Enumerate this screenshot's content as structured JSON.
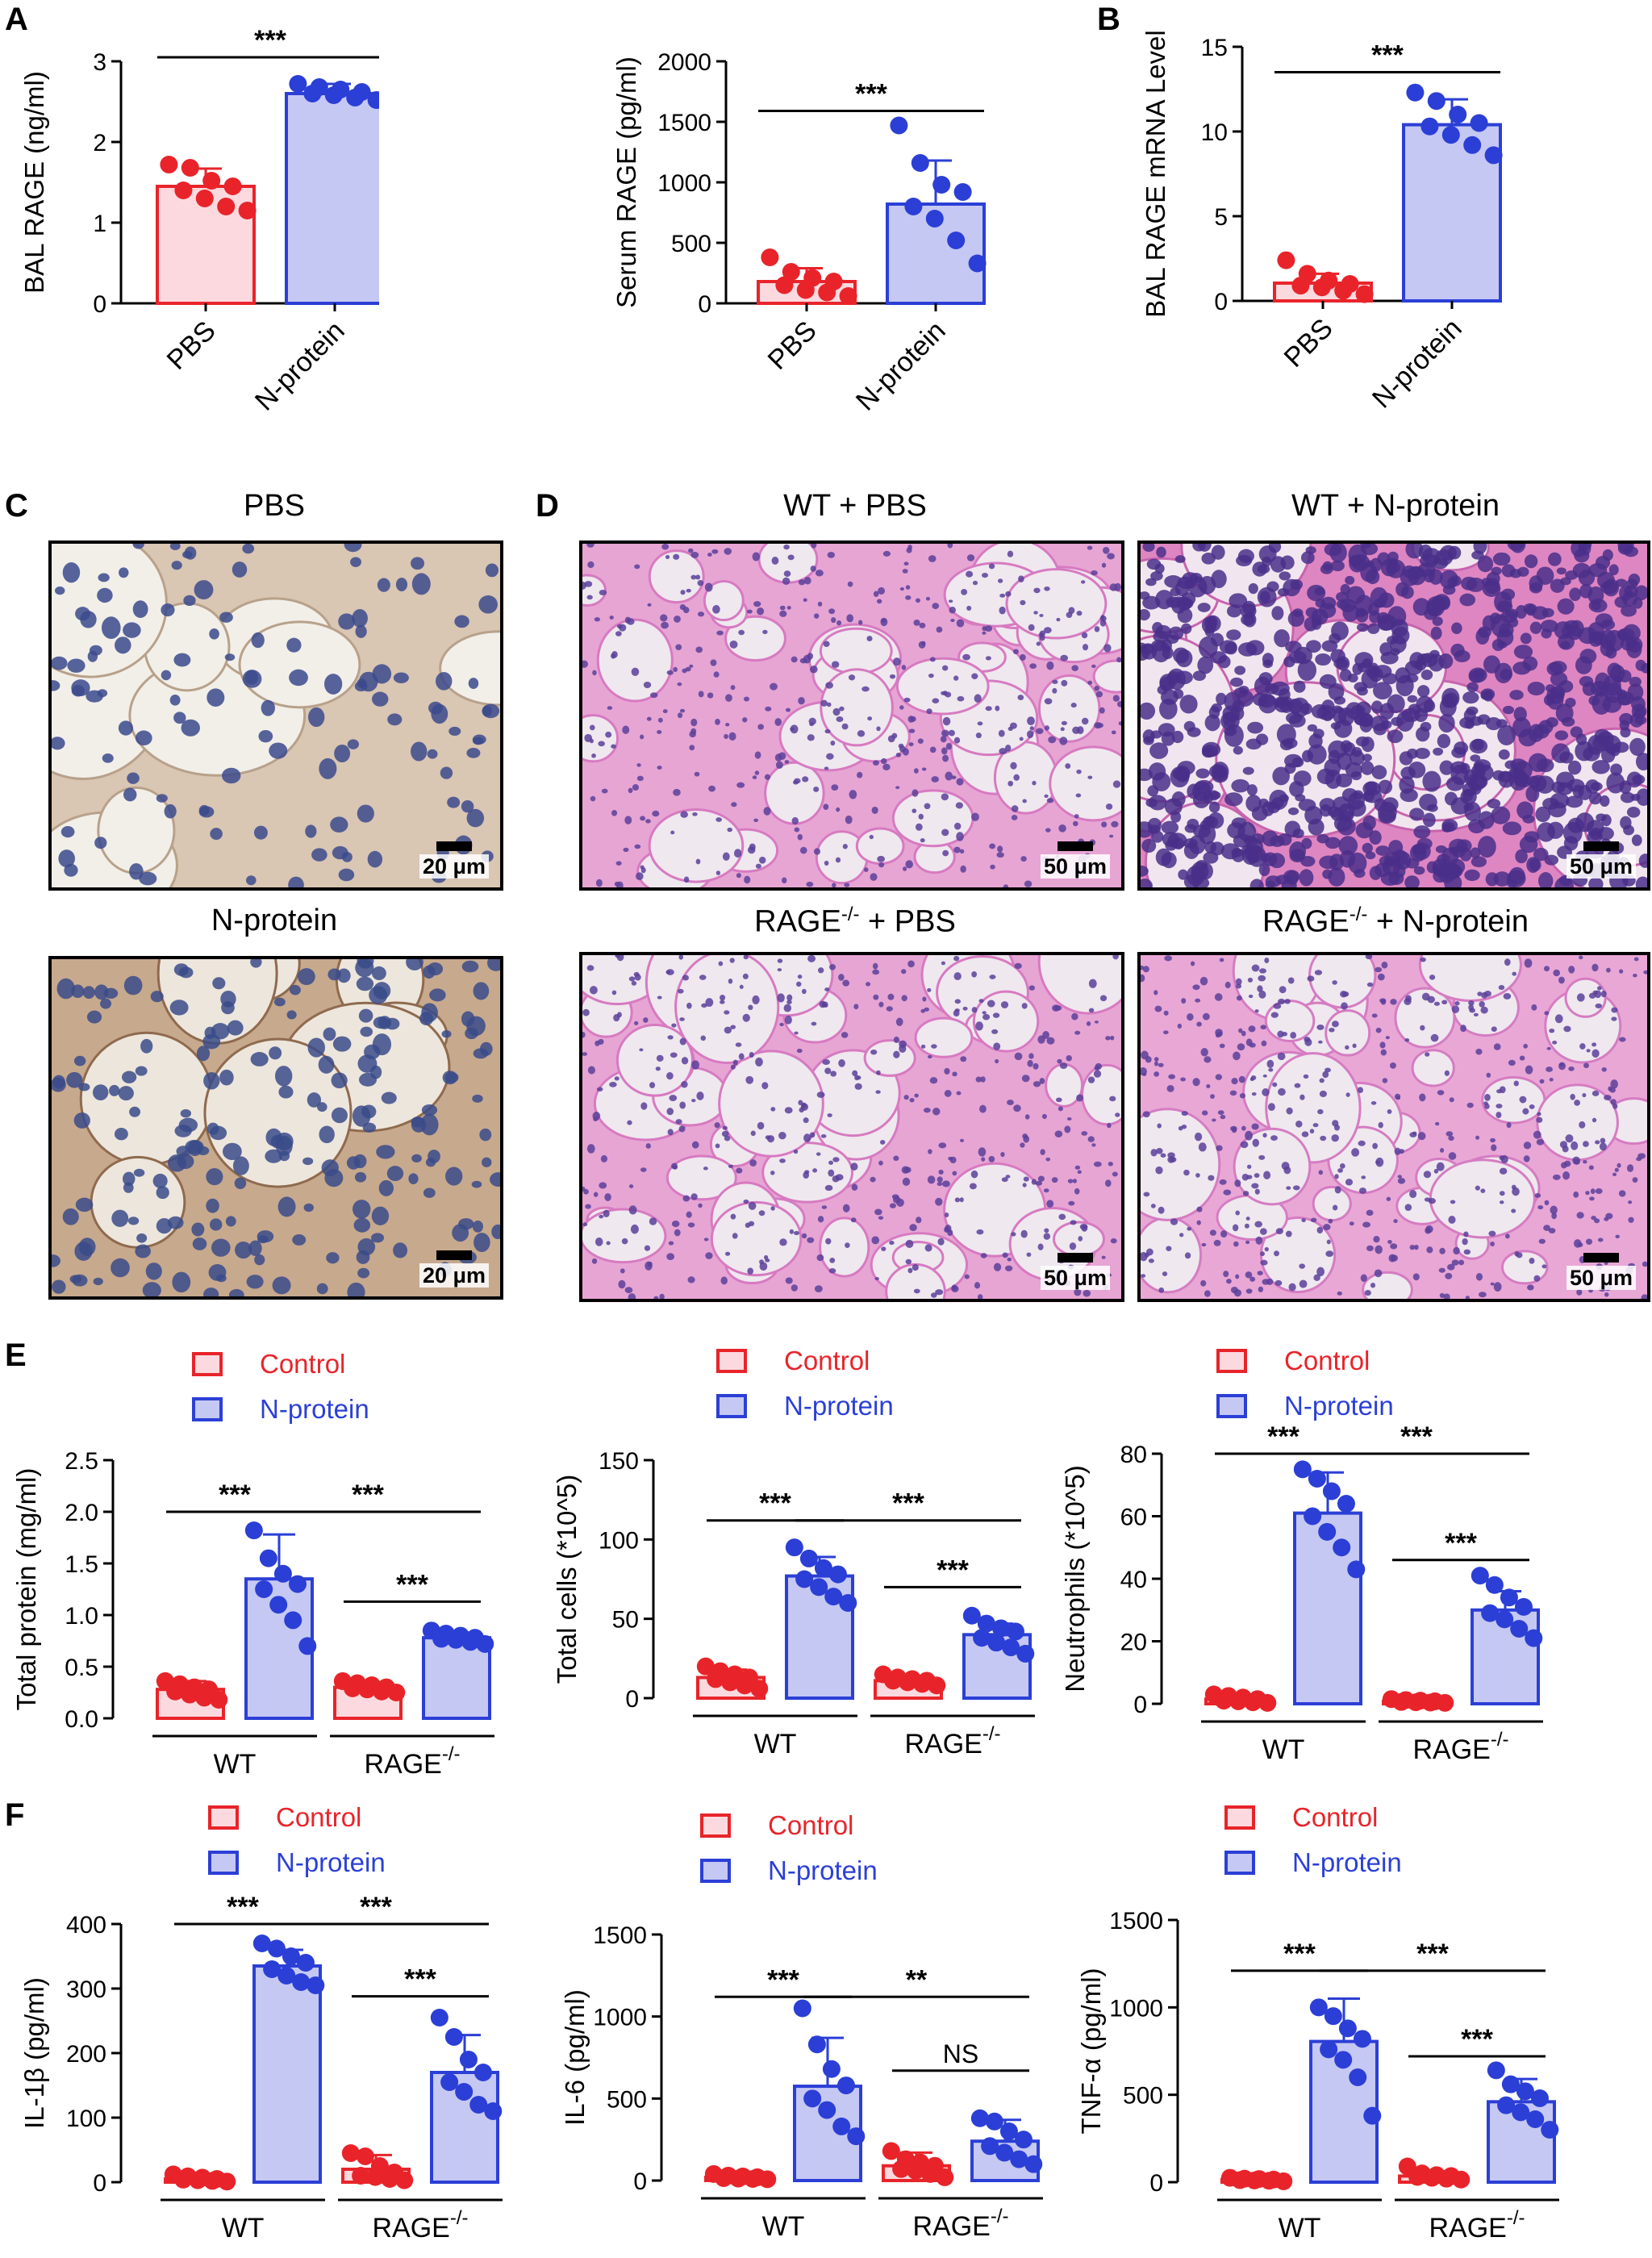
{
  "panel_labels": [
    "A",
    "B",
    "C",
    "D",
    "E",
    "F"
  ],
  "colors": {
    "control": "#e8242a",
    "control_fill": "#fcd9de",
    "nprot": "#2b3fd6",
    "nprot_fill": "#c5c8f3"
  },
  "micrographs": [
    {
      "id": "c-pbs",
      "title": "PBS",
      "scale": "20 μm",
      "stain": "ihc-light"
    },
    {
      "id": "c-nprot",
      "title": "N-protein",
      "scale": "20 μm",
      "stain": "ihc-dark"
    },
    {
      "id": "d-wt-pbs",
      "title": "WT + PBS",
      "scale": "50 μm",
      "stain": "he-normal"
    },
    {
      "id": "d-wt-nprot",
      "title": "WT + N-protein",
      "scale": "50 μm",
      "stain": "he-inflamed"
    },
    {
      "id": "d-rage-pbs",
      "title_main": "RAGE",
      "title_sup": "-/-",
      "title_rest": " + PBS",
      "scale": "50 μm",
      "stain": "he-normal"
    },
    {
      "id": "d-rage-nprot",
      "title_main": "RAGE",
      "title_sup": "-/-",
      "title_rest": " + N-protein",
      "scale": "50 μm",
      "stain": "he-mild"
    }
  ],
  "chart_data": [
    {
      "id": "a1",
      "type": "bar",
      "ylabel": "BAL RAGE (ng/ml)",
      "ylim": [
        0,
        3
      ],
      "yticks": [
        0,
        1,
        2,
        3
      ],
      "categories": [
        "PBS",
        "N-protein"
      ],
      "values": [
        1.45,
        2.6
      ],
      "errors": [
        0.22,
        0.12
      ],
      "colors": [
        "control",
        "nprot"
      ],
      "points": [
        [
          1.72,
          1.68,
          1.52,
          1.45,
          1.4,
          1.3,
          1.2,
          1.15
        ],
        [
          2.72,
          2.68,
          2.65,
          2.62,
          2.6,
          2.58,
          2.55,
          2.52
        ]
      ],
      "sig": [
        {
          "from": 0,
          "to": 1,
          "label": "***",
          "y": 3.05
        }
      ]
    },
    {
      "id": "a2",
      "type": "bar",
      "ylabel": "Serum RAGE (pg/ml)",
      "ylim": [
        0,
        2000
      ],
      "yticks": [
        0,
        500,
        1000,
        1500,
        2000
      ],
      "categories": [
        "PBS",
        "N-protein"
      ],
      "values": [
        180,
        820
      ],
      "errors": [
        110,
        360
      ],
      "colors": [
        "control",
        "nprot"
      ],
      "points": [
        [
          380,
          260,
          210,
          180,
          150,
          110,
          90,
          60
        ],
        [
          1470,
          1160,
          980,
          920,
          800,
          700,
          520,
          330
        ]
      ],
      "sig": [
        {
          "from": 0,
          "to": 1,
          "label": "***",
          "y": 1590
        }
      ]
    },
    {
      "id": "b1",
      "type": "bar",
      "ylabel": "BAL RAGE mRNA Level",
      "ylim": [
        0,
        15
      ],
      "yticks": [
        0,
        5,
        10,
        15
      ],
      "categories": [
        "PBS",
        "N-protein"
      ],
      "values": [
        1.05,
        10.4
      ],
      "errors": [
        0.55,
        1.5
      ],
      "colors": [
        "control",
        "nprot"
      ],
      "points": [
        [
          2.4,
          1.6,
          1.2,
          1.0,
          0.9,
          0.8,
          0.6,
          0.4
        ],
        [
          12.3,
          11.8,
          11.0,
          10.5,
          10.3,
          9.8,
          9.2,
          8.6
        ]
      ],
      "sig": [
        {
          "from": 0,
          "to": 1,
          "label": "***",
          "y": 13.5
        }
      ]
    },
    {
      "id": "e1",
      "type": "bar",
      "ylabel": "Total protein (mg/ml)",
      "ylim": [
        0,
        2.5
      ],
      "yticks": [
        "0.0",
        "0.5",
        "1.0",
        "1.5",
        "2.0",
        "2.5"
      ],
      "categories": [
        "Control",
        "N-protein",
        "Control",
        "N-protein"
      ],
      "groups": [
        "WT",
        "RAGE"
      ],
      "group_sup": [
        "",
        "-/-"
      ],
      "values": [
        0.28,
        1.35,
        0.3,
        0.78
      ],
      "errors": [
        0.08,
        0.43,
        0.05,
        0.05
      ],
      "colors": [
        "control",
        "nprot",
        "control",
        "nprot"
      ],
      "points": [
        [
          0.36,
          0.33,
          0.3,
          0.28,
          0.26,
          0.23,
          0.2,
          0.18
        ],
        [
          1.82,
          1.55,
          1.4,
          1.3,
          1.25,
          1.1,
          0.95,
          0.7
        ],
        [
          0.36,
          0.34,
          0.32,
          0.3,
          0.29,
          0.28,
          0.26,
          0.25
        ],
        [
          0.85,
          0.82,
          0.8,
          0.78,
          0.77,
          0.76,
          0.74,
          0.72
        ]
      ],
      "legend": [
        "Control",
        "N-protein"
      ],
      "sig": [
        {
          "from": 0,
          "to": 1,
          "label": "***",
          "y": 2.0
        },
        {
          "from": 1,
          "to": 3,
          "label": "***",
          "y": 2.0
        },
        {
          "from": 2,
          "to": 3,
          "label": "***",
          "y": 1.13
        }
      ]
    },
    {
      "id": "e2",
      "type": "bar",
      "ylabel": "Total cells (*10^5)",
      "ylim": [
        0,
        150
      ],
      "yticks": [
        0,
        50,
        100,
        150
      ],
      "categories": [
        "Control",
        "N-protein",
        "Control",
        "N-protein"
      ],
      "groups": [
        "WT",
        "RAGE"
      ],
      "group_sup": [
        "",
        "-/-"
      ],
      "values": [
        13,
        77,
        11,
        40
      ],
      "errors": [
        5,
        12,
        3,
        7
      ],
      "colors": [
        "control",
        "nprot",
        "control",
        "nprot"
      ],
      "points": [
        [
          20,
          17,
          15,
          13,
          12,
          10,
          8,
          6
        ],
        [
          95,
          88,
          82,
          78,
          75,
          70,
          64,
          60
        ],
        [
          15,
          13,
          12,
          11,
          11,
          10,
          9,
          8
        ],
        [
          52,
          47,
          44,
          42,
          38,
          35,
          32,
          28
        ]
      ],
      "legend": [
        "Control",
        "N-protein"
      ],
      "sig": [
        {
          "from": 0,
          "to": 1,
          "label": "***",
          "y": 112
        },
        {
          "from": 1,
          "to": 3,
          "label": "***",
          "y": 112
        },
        {
          "from": 2,
          "to": 3,
          "label": "***",
          "y": 70
        }
      ]
    },
    {
      "id": "e3",
      "type": "bar",
      "ylabel": "Neutrophils (*10^5)",
      "ylim": [
        0,
        80
      ],
      "yticks": [
        0,
        20,
        40,
        60,
        80
      ],
      "categories": [
        "Control",
        "N-protein",
        "Control",
        "N-protein"
      ],
      "groups": [
        "WT",
        "RAGE"
      ],
      "group_sup": [
        "",
        "-/-"
      ],
      "values": [
        1.5,
        61,
        0.8,
        30
      ],
      "errors": [
        1,
        13,
        0.5,
        6
      ],
      "colors": [
        "control",
        "nprot",
        "control",
        "nprot"
      ],
      "points": [
        [
          3,
          2.5,
          2,
          1.5,
          1,
          0.8,
          0.5,
          0.3
        ],
        [
          75,
          72,
          68,
          64,
          60,
          55,
          50,
          43
        ],
        [
          1.5,
          1.2,
          1,
          0.8,
          0.6,
          0.5,
          0.4,
          0.3
        ],
        [
          41,
          38,
          34,
          31,
          29,
          27,
          24,
          21
        ]
      ],
      "legend": [
        "Control",
        "N-protein"
      ],
      "sig": [
        {
          "from": 0,
          "to": 1,
          "label": "***",
          "y": 80
        },
        {
          "from": 1,
          "to": 3,
          "label": "***",
          "y": 80
        },
        {
          "from": 2,
          "to": 3,
          "label": "***",
          "y": 46
        }
      ]
    },
    {
      "id": "f1",
      "type": "bar",
      "ylabel": "IL-1β (pg/ml)",
      "ylim": [
        0,
        400
      ],
      "yticks": [
        0,
        100,
        200,
        300,
        400
      ],
      "categories": [
        "Control",
        "N-protein",
        "Control",
        "N-protein"
      ],
      "groups": [
        "WT",
        "RAGE"
      ],
      "group_sup": [
        "",
        "-/-"
      ],
      "values": [
        5,
        335,
        20,
        170
      ],
      "errors": [
        4,
        25,
        22,
        58
      ],
      "colors": [
        "control",
        "nprot",
        "control",
        "nprot"
      ],
      "points": [
        [
          12,
          9,
          7,
          5,
          4,
          3,
          2,
          1
        ],
        [
          370,
          362,
          350,
          340,
          330,
          320,
          310,
          305
        ],
        [
          45,
          40,
          25,
          15,
          10,
          8,
          5,
          3
        ],
        [
          255,
          225,
          190,
          170,
          155,
          140,
          120,
          110
        ]
      ],
      "legend": [
        "Control",
        "N-protein"
      ],
      "sig": [
        {
          "from": 0,
          "to": 1,
          "label": "***",
          "y": 400
        },
        {
          "from": 1,
          "to": 3,
          "label": "***",
          "y": 400
        },
        {
          "from": 2,
          "to": 3,
          "label": "***",
          "y": 288
        }
      ]
    },
    {
      "id": "f2",
      "type": "bar",
      "ylabel": "IL-6 (pg/ml)",
      "ylim": [
        0,
        1500
      ],
      "yticks": [
        0,
        500,
        1000,
        1500
      ],
      "categories": [
        "Control",
        "N-protein",
        "Control",
        "N-protein"
      ],
      "groups": [
        "WT",
        "RAGE"
      ],
      "group_sup": [
        "",
        "-/-"
      ],
      "values": [
        20,
        575,
        90,
        240
      ],
      "errors": [
        12,
        295,
        80,
        130
      ],
      "colors": [
        "control",
        "nprot",
        "control",
        "nprot"
      ],
      "points": [
        [
          40,
          30,
          25,
          20,
          15,
          12,
          10,
          8
        ],
        [
          1050,
          830,
          680,
          580,
          500,
          430,
          330,
          270
        ],
        [
          180,
          130,
          110,
          90,
          70,
          60,
          40,
          20
        ],
        [
          380,
          360,
          300,
          250,
          210,
          170,
          130,
          100
        ]
      ],
      "legend": [
        "Control",
        "N-protein"
      ],
      "sig": [
        {
          "from": 0,
          "to": 1,
          "label": "***",
          "y": 1120
        },
        {
          "from": 1,
          "to": 3,
          "label": "**",
          "y": 1120
        },
        {
          "from": 2,
          "to": 3,
          "label": "NS",
          "y": 670
        }
      ]
    },
    {
      "id": "f3",
      "type": "bar",
      "ylabel": "TNF-α (pg/ml)",
      "ylim": [
        0,
        1500
      ],
      "yticks": [
        0,
        500,
        1000,
        1500
      ],
      "categories": [
        "Control",
        "N-protein",
        "Control",
        "N-protein"
      ],
      "groups": [
        "WT",
        "RAGE"
      ],
      "group_sup": [
        "",
        "-/-"
      ],
      "values": [
        15,
        805,
        35,
        460
      ],
      "errors": [
        8,
        245,
        25,
        130
      ],
      "colors": [
        "control",
        "nprot",
        "control",
        "nprot"
      ],
      "points": [
        [
          25,
          20,
          18,
          15,
          12,
          10,
          8,
          5
        ],
        [
          1000,
          950,
          880,
          820,
          760,
          700,
          600,
          380
        ],
        [
          90,
          50,
          40,
          35,
          30,
          25,
          20,
          15
        ],
        [
          640,
          560,
          520,
          480,
          440,
          400,
          360,
          300
        ]
      ],
      "legend": [
        "Control",
        "N-protein"
      ],
      "sig": [
        {
          "from": 0,
          "to": 1,
          "label": "***",
          "y": 1210
        },
        {
          "from": 1,
          "to": 3,
          "label": "***",
          "y": 1210
        },
        {
          "from": 2,
          "to": 3,
          "label": "***",
          "y": 720
        }
      ]
    }
  ]
}
